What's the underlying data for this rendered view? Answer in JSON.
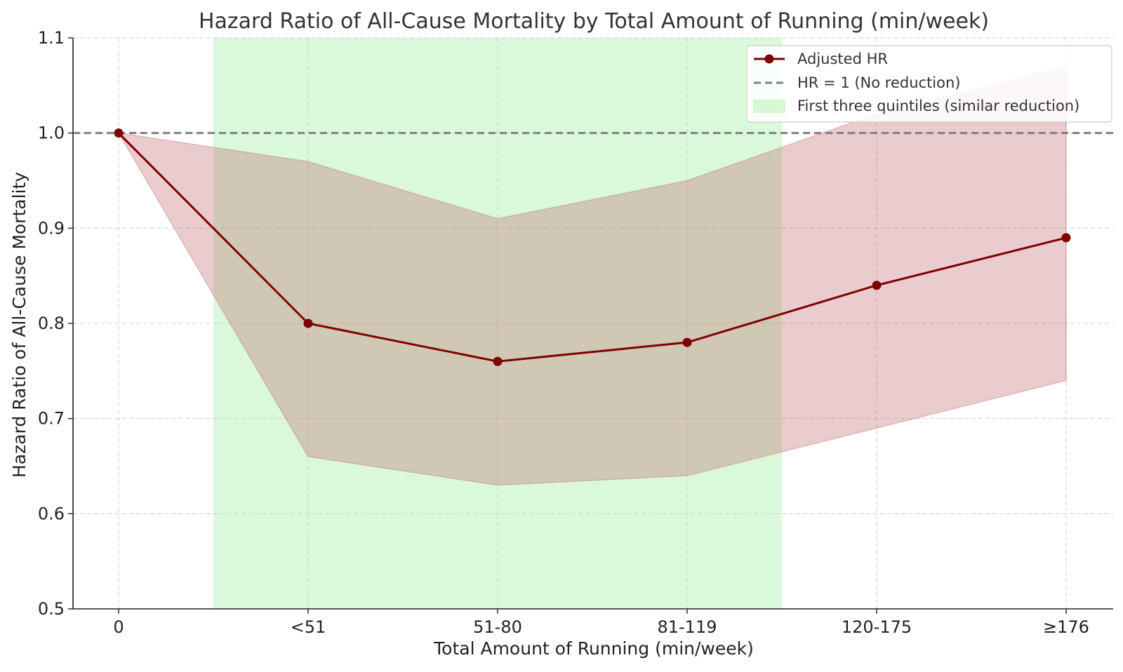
{
  "chart_data": {
    "type": "line",
    "title": "Hazard Ratio of All-Cause Mortality by Total Amount of Running (min/week)",
    "xlabel": "Total Amount of Running (min/week)",
    "ylabel": "Hazard Ratio of All-Cause Mortality",
    "categories": [
      "0",
      "<51",
      "51-80",
      "81-119",
      "120-175",
      "≥176"
    ],
    "ylim": [
      0.5,
      1.1
    ],
    "yticks": [
      "0.5",
      "0.6",
      "0.7",
      "0.8",
      "0.9",
      "1.0",
      "1.1"
    ],
    "grid": true,
    "legend_position": "top-right",
    "series": [
      {
        "name": "Adjusted HR",
        "values": [
          1.0,
          0.8,
          0.76,
          0.78,
          0.84,
          0.89
        ],
        "ci_lower": [
          1.0,
          0.66,
          0.63,
          0.64,
          0.69,
          0.74
        ],
        "ci_upper": [
          1.0,
          0.97,
          0.91,
          0.95,
          1.02,
          1.07
        ],
        "color": "#7f0000"
      }
    ],
    "reference_line": {
      "name": "HR = 1 (No reduction)",
      "value": 1.0,
      "color": "#808080"
    },
    "shaded_region": {
      "name": "First three quintiles (similar reduction)",
      "from_category_index": 0.5,
      "to_category_index": 3.5,
      "color": "#90ee90"
    },
    "ci_fill_color": "#c0606a",
    "legend": [
      "Adjusted HR",
      "HR = 1 (No reduction)",
      "First three quintiles (similar reduction)"
    ]
  }
}
